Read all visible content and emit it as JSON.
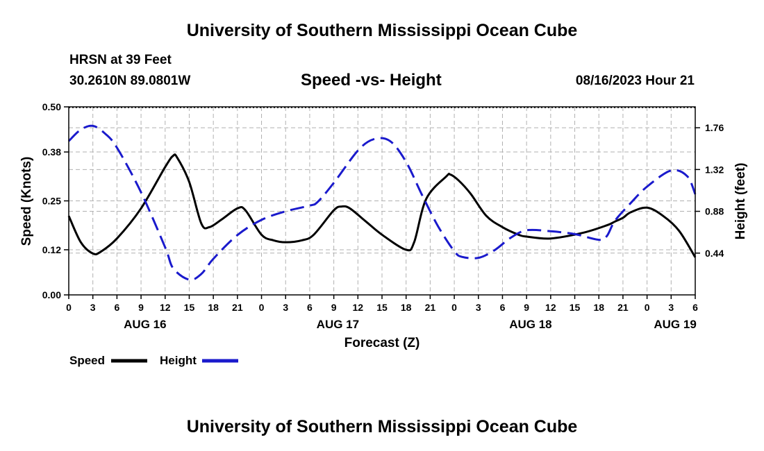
{
  "header": {
    "title": "University of Southern Mississippi Ocean Cube",
    "station": "HRSN at 39 Feet",
    "coords": "30.2610N  89.0801W",
    "chart_title": "Speed -vs- Height",
    "datetime": "08/16/2023 Hour 21"
  },
  "footer": {
    "title": "University of Southern Mississippi Ocean Cube"
  },
  "colors": {
    "speed": "#000000",
    "height": "#1a1acc",
    "grid": "#b0b0b0"
  },
  "chart_data": {
    "type": "line",
    "title": "Speed -vs- Height",
    "xlabel": "Forecast (Z)",
    "ylabel": "Speed (Knots)",
    "y2label": "Height (feet)",
    "x_range_hours": [
      0,
      78
    ],
    "ylim": [
      0,
      0.5
    ],
    "y2lim": [
      0,
      1.98
    ],
    "y_ticks": [
      "0.00",
      "0.12",
      "0.25",
      "0.38",
      "0.50"
    ],
    "y2_ticks": [
      "0.44",
      "0.88",
      "1.32",
      "1.76"
    ],
    "x_tick_labels": [
      "0",
      "3",
      "6",
      "9",
      "12",
      "15",
      "18",
      "21",
      "0",
      "3",
      "6",
      "9",
      "12",
      "15",
      "18",
      "21",
      "0",
      "3",
      "6",
      "9",
      "12",
      "15",
      "18",
      "21",
      "0",
      "3",
      "6"
    ],
    "day_labels": [
      {
        "label": "AUG 16",
        "hour": 9.5
      },
      {
        "label": "AUG 17",
        "hour": 33.5
      },
      {
        "label": "AUG 18",
        "hour": 57.5
      },
      {
        "label": "AUG 19",
        "hour": 75.5
      }
    ],
    "grid": true,
    "legend": "bottom-left",
    "series": [
      {
        "name": "Speed",
        "axis": "left",
        "style": "solid",
        "x": [
          0,
          1.5,
          3,
          4,
          6,
          9,
          12,
          13,
          13.5,
          15,
          16.5,
          17.5,
          19,
          21,
          22,
          24,
          25.5,
          27,
          29,
          30.5,
          33,
          34,
          35,
          37,
          39,
          42,
          43,
          44.5,
          47,
          47.5,
          48.5,
          50,
          52,
          54,
          56,
          57,
          60,
          64,
          67,
          68,
          69,
          70,
          72,
          74,
          76,
          78
        ],
        "y": [
          0.21,
          0.14,
          0.11,
          0.115,
          0.15,
          0.23,
          0.34,
          0.37,
          0.365,
          0.3,
          0.19,
          0.18,
          0.2,
          0.23,
          0.225,
          0.16,
          0.145,
          0.14,
          0.145,
          0.16,
          0.225,
          0.235,
          0.23,
          0.195,
          0.16,
          0.12,
          0.14,
          0.255,
          0.315,
          0.32,
          0.305,
          0.27,
          0.21,
          0.18,
          0.16,
          0.155,
          0.15,
          0.165,
          0.185,
          0.195,
          0.205,
          0.22,
          0.232,
          0.21,
          0.17,
          0.1
        ]
      },
      {
        "name": "Height",
        "axis": "right",
        "style": "dashed",
        "x": [
          0,
          1.5,
          3,
          4.5,
          6,
          9,
          12,
          13,
          15,
          16.5,
          18,
          21,
          24,
          27,
          30,
          31,
          33,
          36,
          38,
          40,
          42,
          44,
          46,
          48,
          49,
          51,
          53,
          55,
          57,
          60,
          63,
          66,
          67,
          68,
          70,
          72,
          75,
          77,
          78
        ],
        "y": [
          1.62,
          1.74,
          1.78,
          1.7,
          1.55,
          1.08,
          0.5,
          0.28,
          0.16,
          0.22,
          0.38,
          0.63,
          0.79,
          0.88,
          0.94,
          0.98,
          1.18,
          1.52,
          1.64,
          1.62,
          1.4,
          1.05,
          0.72,
          0.46,
          0.4,
          0.39,
          0.47,
          0.6,
          0.68,
          0.67,
          0.64,
          0.58,
          0.62,
          0.78,
          0.97,
          1.14,
          1.31,
          1.25,
          1.06
        ]
      }
    ]
  },
  "legend": {
    "speed_label": "Speed",
    "height_label": "Height"
  }
}
